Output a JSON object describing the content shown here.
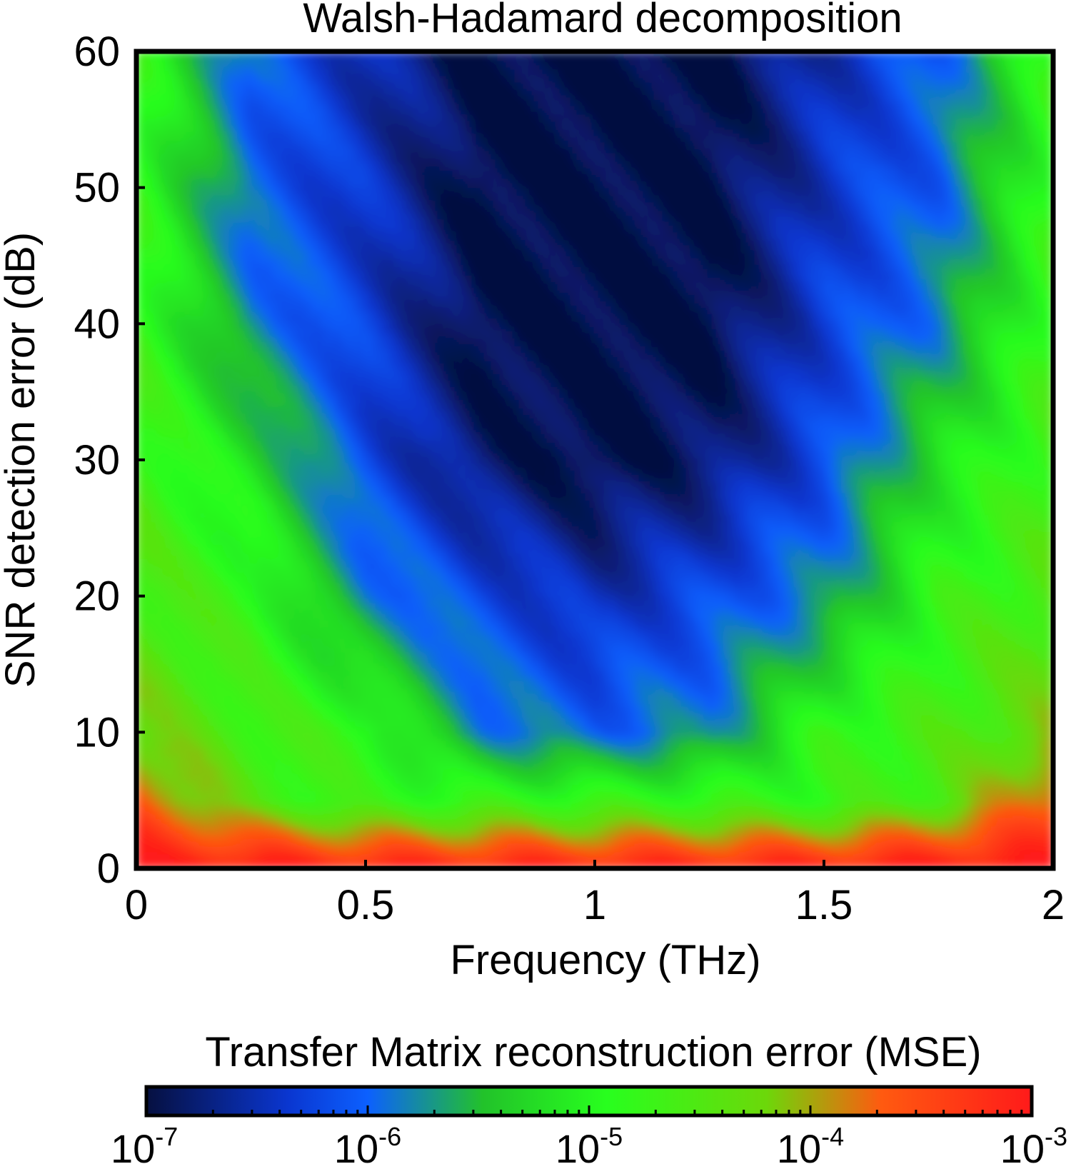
{
  "chart_data": {
    "type": "heatmap",
    "title": "Walsh-Hadamard decomposition",
    "xlabel": "Frequency (THz)",
    "ylabel": "SNR detection error (dB)",
    "xlim": [
      0,
      2
    ],
    "ylim": [
      0,
      60
    ],
    "x_ticks": [
      0,
      0.5,
      1,
      1.5,
      2
    ],
    "x_tick_labels": [
      "0",
      "0.5",
      "1",
      "1.5",
      "2"
    ],
    "y_ticks": [
      0,
      10,
      20,
      30,
      40,
      50,
      60
    ],
    "y_tick_labels": [
      "0",
      "10",
      "20",
      "30",
      "40",
      "50",
      "60"
    ],
    "grid": false,
    "colorbar": {
      "label": "Transfer Matrix reconstruction error (MSE)",
      "scale": "log",
      "range": [
        1e-07,
        0.001
      ],
      "ticks": [
        1e-07,
        1e-06,
        1e-05,
        0.0001,
        0.001
      ],
      "tick_labels": [
        {
          "base": "10",
          "exp": "-7"
        },
        {
          "base": "10",
          "exp": "-6"
        },
        {
          "base": "10",
          "exp": "-5"
        },
        {
          "base": "10",
          "exp": "-4"
        },
        {
          "base": "10",
          "exp": "-3"
        }
      ],
      "colors": [
        "#061040",
        "#0a36d0",
        "#0c60ff",
        "#22c22a",
        "#28ff1e",
        "#6cd80a",
        "#ff5a10",
        "#ff1a1a"
      ],
      "position": "bottom"
    },
    "grid_x": [
      0,
      0.25,
      0.5,
      0.75,
      1,
      1.25,
      1.5,
      1.75,
      2
    ],
    "grid_y": [
      0,
      5,
      10,
      20,
      30,
      40,
      50,
      60
    ],
    "z_log10": [
      [
        -3.0,
        -3.0,
        -3.1,
        -3.1,
        -3.1,
        -3.1,
        -3.1,
        -3.0,
        -3.0
      ],
      [
        -3.6,
        -4.5,
        -4.8,
        -4.8,
        -4.8,
        -4.8,
        -4.8,
        -4.5,
        -3.6
      ],
      [
        -4.2,
        -4.6,
        -4.8,
        -5.8,
        -6.0,
        -5.8,
        -4.8,
        -4.6,
        -4.2
      ],
      [
        -4.5,
        -4.8,
        -5.8,
        -6.2,
        -6.5,
        -6.2,
        -5.8,
        -4.8,
        -4.5
      ],
      [
        -4.6,
        -5.2,
        -6.2,
        -6.8,
        -7.0,
        -6.8,
        -6.2,
        -5.2,
        -4.6
      ],
      [
        -4.7,
        -5.8,
        -6.3,
        -7.0,
        -7.0,
        -7.0,
        -6.3,
        -5.8,
        -4.7
      ],
      [
        -4.8,
        -6.0,
        -6.4,
        -7.0,
        -7.0,
        -7.0,
        -6.4,
        -6.0,
        -4.8
      ],
      [
        -4.8,
        -6.0,
        -6.5,
        -7.0,
        -7.0,
        -7.0,
        -6.5,
        -6.0,
        -4.8
      ]
    ]
  }
}
